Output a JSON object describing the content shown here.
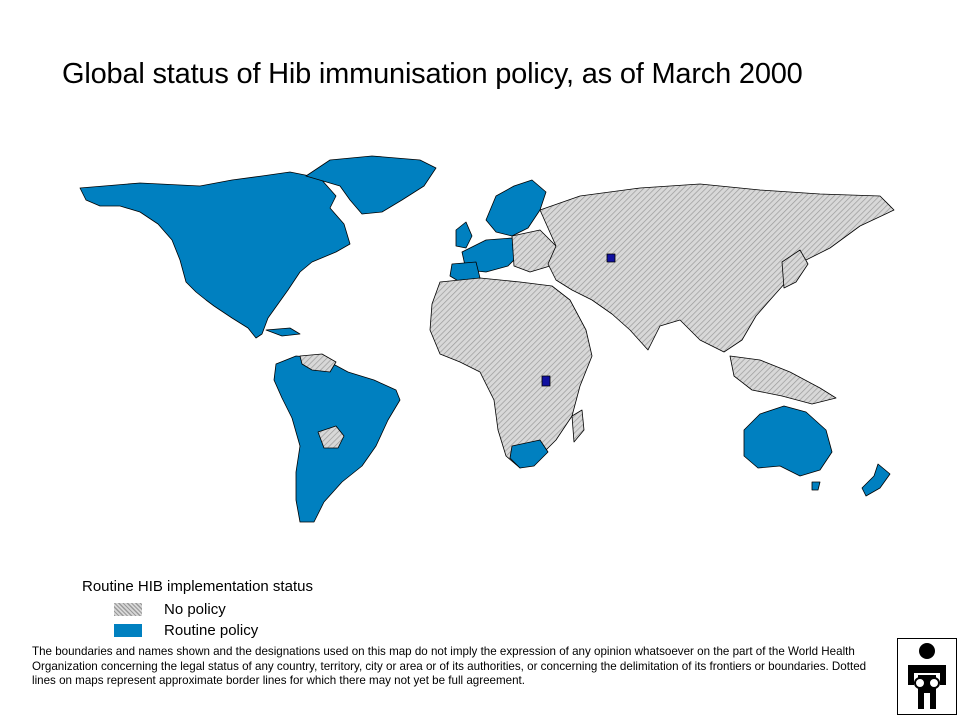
{
  "title": "Global status of Hib immunisation policy, as of March 2000",
  "legend": {
    "title": "Routine HIB implementation status",
    "items": [
      {
        "label": "No policy",
        "pattern": "hatched-grey"
      },
      {
        "label": "Routine policy",
        "color": "#0080C0"
      }
    ]
  },
  "colors": {
    "routine": "#0080C0",
    "no_policy": "#D8D8D8",
    "hatch": "#9A9A9A",
    "border": "#000000"
  },
  "disclaimer": "The boundaries and names shown and the designations used on this map do not imply the expression of any opinion whatsoever on the part of the World Health Organization concerning the legal status of any country, territory, city or area or of its authorities, or concerning the delimitation of its frontiers or boundaries. Dotted lines on maps represent approximate border lines for which there may not yet be full agreement.",
  "logo": {
    "icon": "who-emblem-icon"
  }
}
